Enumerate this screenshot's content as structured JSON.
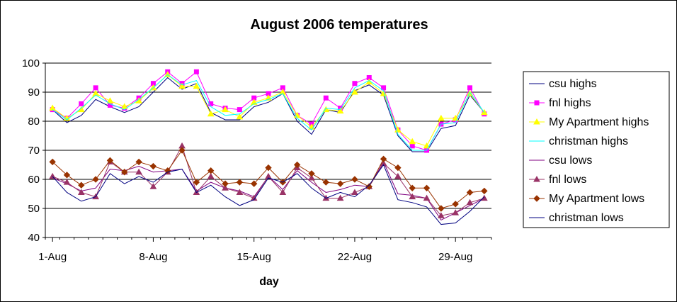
{
  "chart_data": {
    "type": "line",
    "title": "August 2006 temperatures",
    "xlabel": "day",
    "ylabel": "",
    "ylim": [
      40,
      100
    ],
    "yticks": [
      40,
      50,
      60,
      70,
      80,
      90,
      100
    ],
    "x": [
      1,
      2,
      3,
      4,
      5,
      6,
      7,
      8,
      9,
      10,
      11,
      12,
      13,
      14,
      15,
      16,
      17,
      18,
      19,
      20,
      21,
      22,
      23,
      24,
      25,
      26,
      27,
      28,
      29,
      30,
      31
    ],
    "xticks": [
      {
        "x": 1,
        "label": "1-Aug"
      },
      {
        "x": 8,
        "label": "8-Aug"
      },
      {
        "x": 15,
        "label": "15-Aug"
      },
      {
        "x": 22,
        "label": "22-Aug"
      },
      {
        "x": 29,
        "label": "29-Aug"
      }
    ],
    "grid": "horizontal",
    "legend_position": "right",
    "series": [
      {
        "name": "csu highs",
        "color": "#000080",
        "marker": "none",
        "values": [
          84,
          79.5,
          82,
          87.5,
          85,
          83,
          85,
          90,
          95,
          91,
          93,
          83,
          80.5,
          80.5,
          85,
          86.5,
          89.5,
          80,
          75.5,
          84,
          83,
          90.5,
          92.5,
          89,
          75,
          69.5,
          69.5,
          77.5,
          78.5,
          89,
          83
        ]
      },
      {
        "name": "fnl highs",
        "color": "#ff00ff",
        "marker": "square",
        "values": [
          84,
          81,
          86,
          91.5,
          85.5,
          84.5,
          88,
          93,
          97,
          93,
          97,
          86,
          84.5,
          84,
          88,
          89.5,
          91.5,
          82,
          79,
          88,
          84.5,
          93,
          95,
          91.5,
          77,
          71.5,
          70,
          79,
          80.5,
          91.5,
          82.5
        ]
      },
      {
        "name": "My Apartment highs",
        "color": "#ffff00",
        "marker": "triangle",
        "values": [
          84.5,
          81,
          84,
          89.5,
          87,
          85,
          87,
          91.5,
          96,
          92,
          92,
          82.5,
          84,
          81.5,
          86.5,
          88,
          90,
          82,
          78,
          84,
          83.5,
          90,
          93.5,
          89.5,
          77,
          73,
          71.5,
          81,
          81,
          89.5,
          83
        ]
      },
      {
        "name": "christman highs",
        "color": "#00ffff",
        "marker": "none",
        "values": [
          84,
          80.5,
          84.5,
          89,
          86,
          84,
          87.5,
          91.5,
          96,
          92.5,
          94,
          85,
          82,
          82.5,
          86,
          87.5,
          89.5,
          81,
          77,
          84.5,
          84,
          91.5,
          94,
          90.5,
          75.5,
          70,
          70,
          79,
          79.5,
          90,
          83
        ]
      },
      {
        "name": "csu lows",
        "color": "#800080",
        "marker": "none",
        "values": [
          60.5,
          58.5,
          56,
          57,
          63.5,
          63,
          64.5,
          62.5,
          63,
          63.5,
          56,
          59,
          57,
          56,
          54,
          61,
          56.5,
          63,
          59,
          55.5,
          56.5,
          58,
          57.5,
          66,
          55,
          54.5,
          53.5,
          46,
          48.5,
          51,
          53.5
        ]
      },
      {
        "name": "fnl lows",
        "color": "#993366",
        "marker": "triangle",
        "values": [
          61,
          59,
          55.5,
          54,
          66,
          62.5,
          62.5,
          57.5,
          62.5,
          71.5,
          55.5,
          61,
          57,
          55.5,
          53.5,
          61,
          55.5,
          64,
          60.5,
          53.5,
          53.5,
          55.5,
          57.5,
          65.5,
          61,
          54,
          53.5,
          47.5,
          48.5,
          52,
          53.5
        ]
      },
      {
        "name": "My Apartment lows",
        "color": "#993300",
        "marker": "diamond",
        "values": [
          66,
          61.5,
          58,
          60,
          66.5,
          62.5,
          66,
          64.5,
          63,
          70,
          59,
          63,
          58.5,
          59,
          58.5,
          64,
          59,
          65,
          62,
          59,
          58.5,
          60,
          57.5,
          67,
          64,
          57,
          57,
          50,
          51.5,
          55.5,
          56
        ]
      },
      {
        "name": "christman lows",
        "color": "#000080",
        "marker": "none",
        "values": [
          61,
          55.5,
          52.5,
          54,
          62,
          58.5,
          61,
          59,
          62.5,
          63.5,
          55.5,
          58,
          54,
          51,
          53,
          60.5,
          59,
          62,
          57,
          53.5,
          55.5,
          54,
          58,
          65,
          53,
          52,
          50.5,
          44.5,
          45,
          49,
          54
        ]
      }
    ]
  }
}
